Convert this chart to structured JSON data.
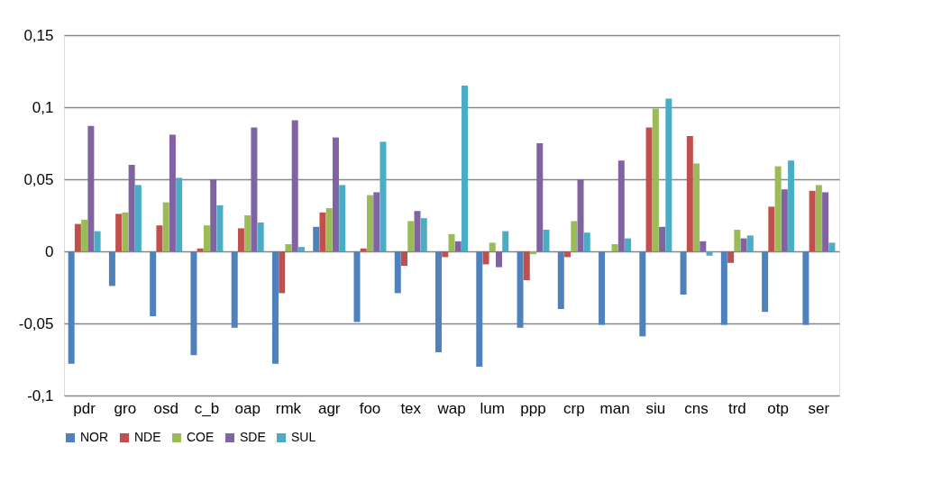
{
  "chart_data": {
    "type": "bar",
    "categories": [
      "pdr",
      "gro",
      "osd",
      "c_b",
      "oap",
      "rmk",
      "agr",
      "foo",
      "tex",
      "wap",
      "lum",
      "ppp",
      "crp",
      "man",
      "siu",
      "cns",
      "trd",
      "otp",
      "ser"
    ],
    "series": [
      {
        "name": "NOR",
        "color": "#4f81bd",
        "values": [
          -0.078,
          -0.024,
          -0.045,
          -0.072,
          -0.053,
          -0.078,
          0.017,
          -0.049,
          -0.029,
          -0.07,
          -0.08,
          -0.053,
          -0.04,
          -0.051,
          -0.059,
          -0.03,
          -0.051,
          -0.042,
          -0.051
        ]
      },
      {
        "name": "NDE",
        "color": "#c0504d",
        "values": [
          0.019,
          0.026,
          0.018,
          0.002,
          0.016,
          -0.029,
          0.027,
          0.002,
          -0.01,
          -0.004,
          -0.009,
          -0.02,
          -0.004,
          0,
          0.086,
          0.08,
          -0.008,
          0.031,
          0.042
        ]
      },
      {
        "name": "COE",
        "color": "#9bbb59",
        "values": [
          0.022,
          0.027,
          0.034,
          0.018,
          0.025,
          0.005,
          0.03,
          0.039,
          0.021,
          0.012,
          0.006,
          -0.002,
          0.021,
          0.005,
          0.099,
          0.061,
          0.015,
          0.059,
          0.046
        ]
      },
      {
        "name": "SDE",
        "color": "#8064a2",
        "values": [
          0.087,
          0.06,
          0.081,
          0.05,
          0.086,
          0.091,
          0.079,
          0.041,
          0.028,
          0.007,
          -0.011,
          0.075,
          0.05,
          0.063,
          0.017,
          0.007,
          0.009,
          0.043,
          0.041
        ]
      },
      {
        "name": "SUL",
        "color": "#4bacc6",
        "values": [
          0.014,
          0.046,
          0.051,
          0.032,
          0.02,
          0.003,
          0.046,
          0.076,
          0.023,
          0.115,
          0.014,
          0.015,
          0.013,
          0.009,
          0.106,
          -0.003,
          0.011,
          0.063,
          0.006
        ]
      }
    ],
    "ylim": [
      -0.1,
      0.15
    ],
    "yticks": [
      {
        "value": -0.1,
        "label": "-0,1"
      },
      {
        "value": -0.05,
        "label": "-0,05"
      },
      {
        "value": 0,
        "label": "0"
      },
      {
        "value": 0.05,
        "label": "0,05"
      },
      {
        "value": 0.1,
        "label": "0,1"
      },
      {
        "value": 0.15,
        "label": "0,15"
      }
    ],
    "grid": "y",
    "legend": "bottom"
  }
}
